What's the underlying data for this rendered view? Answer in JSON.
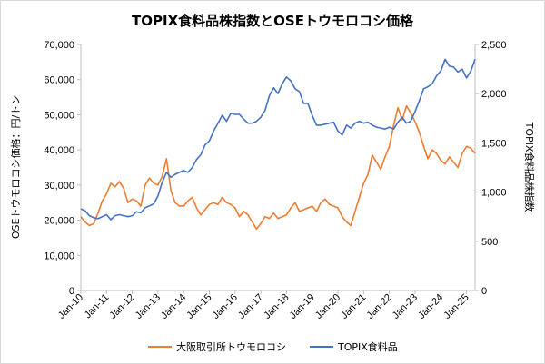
{
  "chart_data": {
    "type": "line",
    "title": "TOPIX食料品株指数とOSEトウモロコシ価格",
    "ylabel_left": "OSEトウモロコシ価格：円/トン",
    "ylabel_right": "TOPIX食料品株指数",
    "x_range": [
      "2010-01",
      "2025-05"
    ],
    "xticks": [
      "Jan-10",
      "Jan-11",
      "Jan-12",
      "Jan-13",
      "Jan-14",
      "Jan-15",
      "Jan-16",
      "Jan-17",
      "Jan-18",
      "Jan-19",
      "Jan-20",
      "Jan-21",
      "Jan-22",
      "Jan-23",
      "Jan-24",
      "Jan-25"
    ],
    "ylim_left": [
      0,
      70000
    ],
    "yticks_left": [
      "0",
      "10,000",
      "20,000",
      "30,000",
      "40,000",
      "50,000",
      "60,000",
      "70,000"
    ],
    "ylim_right": [
      0,
      2500
    ],
    "yticks_right": [
      "0",
      "500",
      "1,000",
      "1,500",
      "2,000",
      "2,500"
    ],
    "grid": false,
    "legend_position": "bottom",
    "series": [
      {
        "name": "大阪取引所トウモロコシ",
        "axis": "left",
        "color": "#ED7D31",
        "points": [
          [
            "2010-01",
            21000
          ],
          [
            "2010-03",
            19500
          ],
          [
            "2010-05",
            18500
          ],
          [
            "2010-07",
            19000
          ],
          [
            "2010-09",
            22000
          ],
          [
            "2010-11",
            25500
          ],
          [
            "2011-01",
            27500
          ],
          [
            "2011-03",
            30500
          ],
          [
            "2011-05",
            29500
          ],
          [
            "2011-07",
            31000
          ],
          [
            "2011-09",
            29000
          ],
          [
            "2011-11",
            25000
          ],
          [
            "2012-01",
            26000
          ],
          [
            "2012-03",
            25500
          ],
          [
            "2012-05",
            24000
          ],
          [
            "2012-07",
            30000
          ],
          [
            "2012-09",
            32000
          ],
          [
            "2012-11",
            30500
          ],
          [
            "2013-01",
            30000
          ],
          [
            "2013-03",
            32500
          ],
          [
            "2013-05",
            37500
          ],
          [
            "2013-07",
            28500
          ],
          [
            "2013-09",
            25000
          ],
          [
            "2013-11",
            24000
          ],
          [
            "2014-01",
            24000
          ],
          [
            "2014-03",
            25500
          ],
          [
            "2014-05",
            26500
          ],
          [
            "2014-07",
            23500
          ],
          [
            "2014-09",
            21500
          ],
          [
            "2014-11",
            23000
          ],
          [
            "2015-01",
            24500
          ],
          [
            "2015-03",
            25000
          ],
          [
            "2015-05",
            24500
          ],
          [
            "2015-07",
            26500
          ],
          [
            "2015-09",
            25000
          ],
          [
            "2015-11",
            24500
          ],
          [
            "2016-01",
            23500
          ],
          [
            "2016-03",
            21000
          ],
          [
            "2016-05",
            22500
          ],
          [
            "2016-07",
            21500
          ],
          [
            "2016-09",
            19500
          ],
          [
            "2016-11",
            17500
          ],
          [
            "2017-01",
            19000
          ],
          [
            "2017-03",
            21000
          ],
          [
            "2017-05",
            20500
          ],
          [
            "2017-07",
            22000
          ],
          [
            "2017-09",
            20500
          ],
          [
            "2017-11",
            21000
          ],
          [
            "2018-01",
            21500
          ],
          [
            "2018-03",
            23500
          ],
          [
            "2018-05",
            25000
          ],
          [
            "2018-07",
            22500
          ],
          [
            "2018-09",
            23000
          ],
          [
            "2018-11",
            23500
          ],
          [
            "2019-01",
            24000
          ],
          [
            "2019-03",
            22500
          ],
          [
            "2019-05",
            25000
          ],
          [
            "2019-07",
            26000
          ],
          [
            "2019-09",
            24500
          ],
          [
            "2019-11",
            24000
          ],
          [
            "2020-01",
            23500
          ],
          [
            "2020-03",
            21000
          ],
          [
            "2020-05",
            19500
          ],
          [
            "2020-07",
            18500
          ],
          [
            "2020-09",
            22500
          ],
          [
            "2020-11",
            26500
          ],
          [
            "2021-01",
            30500
          ],
          [
            "2021-03",
            33000
          ],
          [
            "2021-05",
            38500
          ],
          [
            "2021-07",
            36500
          ],
          [
            "2021-09",
            34500
          ],
          [
            "2021-11",
            38000
          ],
          [
            "2022-01",
            41000
          ],
          [
            "2022-03",
            47000
          ],
          [
            "2022-05",
            52000
          ],
          [
            "2022-07",
            48500
          ],
          [
            "2022-09",
            52500
          ],
          [
            "2022-11",
            50500
          ],
          [
            "2023-01",
            48000
          ],
          [
            "2023-03",
            45000
          ],
          [
            "2023-05",
            41000
          ],
          [
            "2023-07",
            37500
          ],
          [
            "2023-09",
            40000
          ],
          [
            "2023-11",
            39000
          ],
          [
            "2024-01",
            37000
          ],
          [
            "2024-03",
            36000
          ],
          [
            "2024-05",
            38000
          ],
          [
            "2024-07",
            36500
          ],
          [
            "2024-09",
            35000
          ],
          [
            "2024-11",
            39000
          ],
          [
            "2025-01",
            41000
          ],
          [
            "2025-03",
            40500
          ],
          [
            "2025-05",
            39000
          ]
        ]
      },
      {
        "name": "TOPIX食料品",
        "axis": "right",
        "color": "#4472C4",
        "points": [
          [
            "2010-01",
            830
          ],
          [
            "2010-03",
            810
          ],
          [
            "2010-05",
            760
          ],
          [
            "2010-07",
            740
          ],
          [
            "2010-09",
            730
          ],
          [
            "2010-11",
            750
          ],
          [
            "2011-01",
            770
          ],
          [
            "2011-03",
            720
          ],
          [
            "2011-05",
            760
          ],
          [
            "2011-07",
            770
          ],
          [
            "2011-09",
            760
          ],
          [
            "2011-11",
            750
          ],
          [
            "2012-01",
            760
          ],
          [
            "2012-03",
            800
          ],
          [
            "2012-05",
            790
          ],
          [
            "2012-07",
            840
          ],
          [
            "2012-09",
            860
          ],
          [
            "2012-11",
            880
          ],
          [
            "2013-01",
            960
          ],
          [
            "2013-03",
            1100
          ],
          [
            "2013-05",
            1200
          ],
          [
            "2013-07",
            1150
          ],
          [
            "2013-09",
            1180
          ],
          [
            "2013-11",
            1200
          ],
          [
            "2014-01",
            1220
          ],
          [
            "2014-03",
            1200
          ],
          [
            "2014-05",
            1250
          ],
          [
            "2014-07",
            1330
          ],
          [
            "2014-09",
            1380
          ],
          [
            "2014-11",
            1480
          ],
          [
            "2015-01",
            1520
          ],
          [
            "2015-03",
            1620
          ],
          [
            "2015-05",
            1700
          ],
          [
            "2015-07",
            1780
          ],
          [
            "2015-09",
            1720
          ],
          [
            "2015-11",
            1800
          ],
          [
            "2016-01",
            1790
          ],
          [
            "2016-03",
            1790
          ],
          [
            "2016-05",
            1740
          ],
          [
            "2016-07",
            1700
          ],
          [
            "2016-09",
            1700
          ],
          [
            "2016-11",
            1720
          ],
          [
            "2017-01",
            1760
          ],
          [
            "2017-03",
            1830
          ],
          [
            "2017-05",
            1980
          ],
          [
            "2017-07",
            2060
          ],
          [
            "2017-09",
            2000
          ],
          [
            "2017-11",
            2100
          ],
          [
            "2018-01",
            2170
          ],
          [
            "2018-03",
            2130
          ],
          [
            "2018-05",
            2050
          ],
          [
            "2018-07",
            2020
          ],
          [
            "2018-09",
            1900
          ],
          [
            "2018-11",
            1900
          ],
          [
            "2019-01",
            1780
          ],
          [
            "2019-03",
            1680
          ],
          [
            "2019-05",
            1680
          ],
          [
            "2019-07",
            1690
          ],
          [
            "2019-09",
            1700
          ],
          [
            "2019-11",
            1710
          ],
          [
            "2020-01",
            1620
          ],
          [
            "2020-03",
            1580
          ],
          [
            "2020-05",
            1680
          ],
          [
            "2020-07",
            1650
          ],
          [
            "2020-09",
            1700
          ],
          [
            "2020-11",
            1720
          ],
          [
            "2021-01",
            1700
          ],
          [
            "2021-03",
            1710
          ],
          [
            "2021-05",
            1680
          ],
          [
            "2021-07",
            1660
          ],
          [
            "2021-09",
            1650
          ],
          [
            "2021-11",
            1640
          ],
          [
            "2022-01",
            1660
          ],
          [
            "2022-03",
            1640
          ],
          [
            "2022-05",
            1710
          ],
          [
            "2022-07",
            1760
          ],
          [
            "2022-09",
            1700
          ],
          [
            "2022-11",
            1720
          ],
          [
            "2023-01",
            1820
          ],
          [
            "2023-03",
            1930
          ],
          [
            "2023-05",
            2050
          ],
          [
            "2023-07",
            2070
          ],
          [
            "2023-09",
            2100
          ],
          [
            "2023-11",
            2180
          ],
          [
            "2024-01",
            2230
          ],
          [
            "2024-03",
            2350
          ],
          [
            "2024-05",
            2280
          ],
          [
            "2024-07",
            2270
          ],
          [
            "2024-09",
            2220
          ],
          [
            "2024-11",
            2250
          ],
          [
            "2025-01",
            2160
          ],
          [
            "2025-03",
            2230
          ],
          [
            "2025-05",
            2350
          ]
        ]
      }
    ]
  }
}
